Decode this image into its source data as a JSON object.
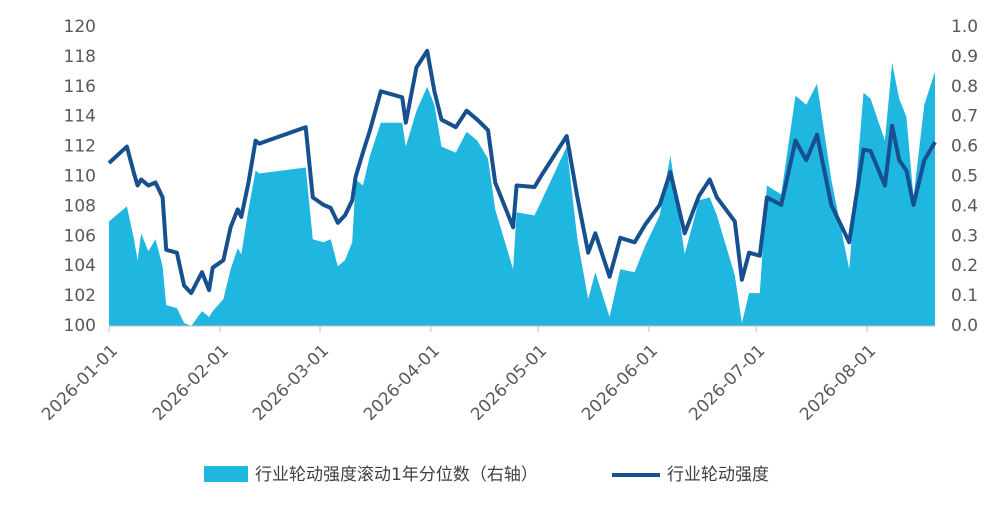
{
  "chart_data": {
    "type": "line",
    "x": [
      "2026-01-01",
      "2026-01-06",
      "2026-01-08",
      "2026-01-09",
      "2026-01-10",
      "2026-01-12",
      "2026-01-14",
      "2026-01-16",
      "2026-01-17",
      "2026-01-20",
      "2026-01-22",
      "2026-01-24",
      "2026-01-27",
      "2026-01-29",
      "2026-01-30",
      "2026-02-02",
      "2026-02-04",
      "2026-02-06",
      "2026-02-07",
      "2026-02-09",
      "2026-02-11",
      "2026-02-12",
      "2026-02-25",
      "2026-02-27",
      "2026-03-02",
      "2026-03-04",
      "2026-03-06",
      "2026-03-08",
      "2026-03-10",
      "2026-03-11",
      "2026-03-13",
      "2026-03-15",
      "2026-03-18",
      "2026-03-24",
      "2026-03-25",
      "2026-03-28",
      "2026-03-31",
      "2026-04-02",
      "2026-04-04",
      "2026-04-08",
      "2026-04-11",
      "2026-04-14",
      "2026-04-17",
      "2026-04-19",
      "2026-04-24",
      "2026-04-25",
      "2026-04-30",
      "2026-05-02",
      "2026-05-09",
      "2026-05-12",
      "2026-05-15",
      "2026-05-17",
      "2026-05-21",
      "2026-05-24",
      "2026-05-28",
      "2026-05-31",
      "2026-06-04",
      "2026-06-07",
      "2026-06-11",
      "2026-06-15",
      "2026-06-18",
      "2026-06-20",
      "2026-06-25",
      "2026-06-27",
      "2026-06-29",
      "2026-07-02",
      "2026-07-04",
      "2026-07-08",
      "2026-07-12",
      "2026-07-15",
      "2026-07-18",
      "2026-07-22",
      "2026-07-27",
      "2026-07-31",
      "2026-08-02",
      "2026-08-06",
      "2026-08-08",
      "2026-08-10",
      "2026-08-12",
      "2026-08-14",
      "2026-08-17",
      "2026-08-20"
    ],
    "series": [
      {
        "name": "行业轮动强度滚动1年分位数（右轴）",
        "type": "area",
        "axis": "y2",
        "color": "#1fb6e0",
        "values": [
          0.35,
          0.4,
          0.29,
          0.22,
          0.31,
          0.25,
          0.29,
          0.2,
          0.07,
          0.06,
          0.01,
          0.0,
          0.05,
          0.03,
          0.05,
          0.09,
          0.19,
          0.26,
          0.24,
          0.39,
          0.52,
          0.51,
          0.53,
          0.29,
          0.28,
          0.29,
          0.2,
          0.22,
          0.28,
          0.49,
          0.47,
          0.57,
          0.68,
          0.68,
          0.6,
          0.72,
          0.8,
          0.74,
          0.6,
          0.58,
          0.65,
          0.62,
          0.56,
          0.39,
          0.19,
          0.38,
          0.37,
          0.42,
          0.6,
          0.29,
          0.09,
          0.18,
          0.03,
          0.19,
          0.18,
          0.27,
          0.37,
          0.57,
          0.24,
          0.42,
          0.43,
          0.37,
          0.17,
          0.01,
          0.11,
          0.11,
          0.47,
          0.44,
          0.77,
          0.74,
          0.81,
          0.49,
          0.19,
          0.78,
          0.76,
          0.62,
          0.88,
          0.76,
          0.7,
          0.43,
          0.74,
          0.85
        ]
      },
      {
        "name": "行业轮动强度",
        "type": "line",
        "color": "#16508f",
        "values": [
          110.9,
          112.0,
          110.2,
          109.4,
          109.8,
          109.4,
          109.6,
          108.6,
          105.1,
          104.9,
          102.7,
          102.2,
          103.6,
          102.4,
          103.9,
          104.4,
          106.6,
          107.8,
          107.3,
          109.6,
          112.4,
          112.2,
          113.3,
          108.6,
          108.1,
          107.9,
          106.9,
          107.4,
          108.4,
          110.0,
          111.6,
          113.1,
          115.7,
          115.3,
          113.6,
          117.3,
          118.4,
          115.7,
          113.8,
          113.3,
          114.4,
          113.8,
          113.1,
          109.6,
          106.6,
          109.4,
          109.3,
          110.1,
          112.7,
          108.6,
          104.9,
          106.2,
          103.3,
          105.9,
          105.6,
          106.8,
          108.1,
          110.3,
          106.2,
          108.7,
          109.8,
          108.6,
          107.0,
          103.1,
          104.9,
          104.7,
          108.6,
          108.1,
          112.4,
          111.1,
          112.8,
          108.1,
          105.6,
          111.8,
          111.7,
          109.4,
          113.4,
          111.1,
          110.4,
          108.1,
          111.1,
          112.3
        ]
      }
    ],
    "xlim": [
      "2026-01-01",
      "2026-08-20"
    ],
    "xticks": [
      "2026-01-01",
      "2026-02-01",
      "2026-03-01",
      "2026-04-01",
      "2026-05-01",
      "2026-06-01",
      "2026-07-01",
      "2026-08-01"
    ],
    "ylim": [
      100,
      120
    ],
    "yticks": [
      100,
      102,
      104,
      106,
      108,
      110,
      112,
      114,
      116,
      118,
      120
    ],
    "y2lim": [
      0,
      1
    ],
    "y2ticks": [
      {
        "value": 0,
        "label": "0.0"
      },
      0.1,
      0.2,
      0.3,
      0.4,
      0.5,
      0.6,
      0.7,
      0.8,
      0.9,
      {
        "value": 1,
        "label": "1.0"
      }
    ],
    "grid": false
  }
}
